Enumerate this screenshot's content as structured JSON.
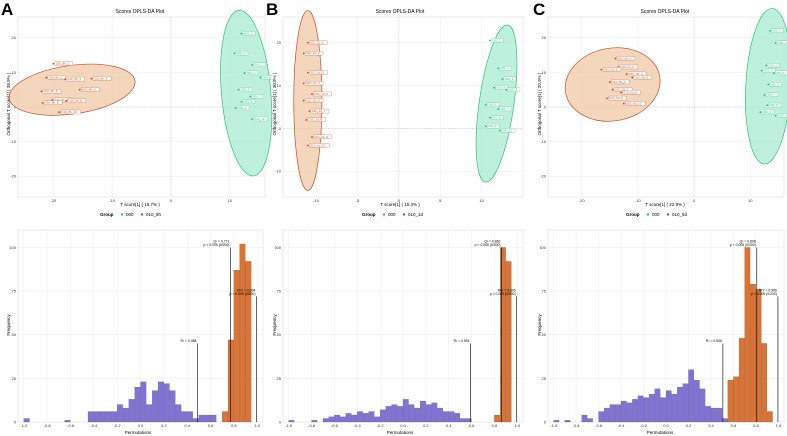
{
  "colors": {
    "grp_000": "#2ec27e",
    "grp_010": "#c0502a",
    "ellipse_000_fill": "#a8ecd0",
    "ellipse_010_fill": "#f0c8a6",
    "perm_q2": "#6a5acd",
    "perm_r2y": "#d35a10",
    "panel_bg": "#ffffff",
    "grid": "#ececec"
  },
  "panels": [
    {
      "letter": "A",
      "score": {
        "title": "Scores OPLS-DA Plot",
        "xlabel": "T score[1] ( 16.7% )",
        "ylabel": "Orthogonal T score[1] ( 38.9% )",
        "xticks": [
          "-20",
          "-10",
          "0",
          "10"
        ],
        "yticks": [
          "20",
          "10",
          "0",
          "-10",
          "-20"
        ],
        "legend_title": "Group",
        "legend_items": [
          "000",
          "010_8h"
        ]
      },
      "perm": {
        "legend_items": [
          "Perm Q²",
          "Perm R²Y"
        ],
        "xlabel": "Permutations",
        "ylabel": "Frequency",
        "xticks": [
          "-1.0",
          "-0.8",
          "-0.6",
          "-0.4",
          "-0.2",
          "0.0",
          "0.2",
          "0.4",
          "0.6",
          "0.8",
          "1.0"
        ],
        "yticks": [
          "100",
          "75",
          "50",
          "25",
          "0"
        ],
        "annot_r2": "R² = 0.488",
        "annot_q2": "Q² = 0.771 p < 0.005 (0/200)",
        "annot_r2y": "R²Y = 0.994 p < 0.005 (0/200)"
      }
    },
    {
      "letter": "B",
      "score": {
        "title": "Scores OPLS-DA Plot",
        "xlabel": "T score[1] ( 15.3% )",
        "ylabel": "Orthogonal T score[1] ( 30.8% )",
        "xticks": [
          "-10",
          "-5",
          "0",
          "5",
          "10"
        ],
        "yticks": [
          "20",
          "10",
          "0",
          "-10"
        ],
        "legend_title": "Group",
        "legend_items": [
          "000",
          "010_1d"
        ]
      },
      "perm": {
        "legend_items": [
          "Perm Q²",
          "Perm R²Y"
        ],
        "xlabel": "Permutations",
        "ylabel": "Frequency",
        "xticks": [
          "-1.0",
          "-0.8",
          "-0.6",
          "-0.4",
          "-0.2",
          "0.0",
          "0.2",
          "0.4",
          "0.6",
          "0.8",
          "1.0"
        ],
        "yticks": [
          "100",
          "75",
          "50",
          "25",
          "0"
        ],
        "annot_r2": "R² = 0.591",
        "annot_q2": "Q² = 0.862 p < 0.005 (0/200)",
        "annot_r2y": "R²Y = 0.995 p < 0.005 (0/200)"
      }
    },
    {
      "letter": "C",
      "score": {
        "title": "Scores OPLS-DA Plot",
        "xlabel": "T score[1] ( 22.9% )",
        "ylabel": "Orthogonal T score[1] ( 20.9% )",
        "xticks": [
          "-20",
          "-10",
          "0",
          "10"
        ],
        "yticks": [
          "20",
          "10",
          "0",
          "-10",
          "-20"
        ],
        "legend_title": "Group",
        "legend_items": [
          "000",
          "010_5d"
        ]
      },
      "perm": {
        "legend_items": [
          "Perm Q²",
          "Perm R²Y"
        ],
        "xlabel": "Permutations",
        "ylabel": "Frequency",
        "xticks": [
          "-1.0",
          "-0.8",
          "-0.6",
          "-0.4",
          "-0.2",
          "0.0",
          "0.2",
          "0.4",
          "0.6",
          "0.8",
          "1.0"
        ],
        "yticks": [
          "100",
          "75",
          "50",
          "25",
          "0"
        ],
        "annot_r2": "R² = 0.506",
        "annot_q2": "Q² = 0.808 p < 0.005 (0/200)",
        "annot_r2y": "R²Y = 0.996 p < 0.005 (0/200)"
      }
    }
  ],
  "chart_data": [
    {
      "type": "scatter",
      "panel": "A-score",
      "xlim": [
        -26,
        16
      ],
      "ylim": [
        -26,
        26
      ],
      "series": [
        {
          "name": "000",
          "points": [
            [
              12.0,
              21.2
            ],
            [
              10.8,
              15.5
            ],
            [
              13.8,
              12.2
            ],
            [
              12.5,
              9.8
            ],
            [
              15.2,
              8.5
            ],
            [
              11.5,
              5.0
            ],
            [
              13.5,
              3.0
            ],
            [
              12.0,
              1.5
            ],
            [
              11.0,
              -0.3
            ],
            [
              13.8,
              -3.5
            ]
          ],
          "labels": [
            "000_1",
            "000_2",
            "000_3",
            "000_4",
            "000_5",
            "000_6",
            "000_7",
            "000_8",
            "000_9",
            "000_10"
          ],
          "ellipse": {
            "cx": 12.8,
            "cy": 4.0,
            "rx": 4.2,
            "ry": 24.0,
            "angle": -5
          }
        },
        {
          "name": "010_8h",
          "points": [
            [
              -20.0,
              12.5
            ],
            [
              -21.2,
              8.5
            ],
            [
              -18.0,
              8.0
            ],
            [
              -13.5,
              8.2
            ],
            [
              -15.5,
              5.0
            ],
            [
              -22.0,
              4.5
            ],
            [
              -20.2,
              2.0
            ],
            [
              -17.8,
              1.8
            ],
            [
              -21.8,
              1.2
            ],
            [
              -19.0,
              -1.5
            ]
          ],
          "labels": [
            "010_8h_1",
            "010_8h_2",
            "010_8h_3",
            "010_8h_4",
            "010_8h_5",
            "010_8h_6",
            "010_8h_7",
            "010_8h_8",
            "010_8h_9",
            "010_8h_10"
          ],
          "ellipse": {
            "cx": -16.8,
            "cy": 5.0,
            "rx": 10.8,
            "ry": 7.0,
            "angle": -8
          }
        }
      ]
    },
    {
      "type": "scatter",
      "panel": "B-score",
      "xlim": [
        -14,
        15
      ],
      "ylim": [
        -16,
        26
      ],
      "series": [
        {
          "name": "000",
          "points": [
            [
              11.0,
              20.5
            ],
            [
              12.0,
              14.0
            ],
            [
              12.5,
              11.5
            ],
            [
              11.5,
              9.5
            ],
            [
              13.0,
              9.0
            ],
            [
              10.5,
              5.5
            ],
            [
              12.0,
              4.5
            ],
            [
              11.0,
              2.5
            ],
            [
              10.5,
              0.5
            ],
            [
              12.2,
              -0.5
            ]
          ],
          "labels": [
            "000_1",
            "000_2",
            "000_3",
            "000_4",
            "000_5",
            "000_6",
            "000_7",
            "000_8",
            "000_9",
            "000_10"
          ],
          "ellipse": {
            "cx": 11.8,
            "cy": 5.8,
            "rx": 2.1,
            "ry": 18.5,
            "angle": 8
          }
        },
        {
          "name": "010_1d",
          "points": [
            [
              -11.0,
              20.0
            ],
            [
              -11.5,
              17.5
            ],
            [
              -11.0,
              13.0
            ],
            [
              -11.5,
              10.5
            ],
            [
              -10.5,
              8.0
            ],
            [
              -11.5,
              6.5
            ],
            [
              -10.8,
              4.0
            ],
            [
              -11.2,
              2.0
            ],
            [
              -10.5,
              -2.0
            ],
            [
              -11.0,
              -4.0
            ]
          ],
          "labels": [
            "010_1d_1",
            "010_1d_2",
            "010_1d_3",
            "010_1d_4",
            "010_1d_5",
            "010_1d_6",
            "010_1d_7",
            "010_1d_8",
            "010_1d_9",
            "010_1d_10"
          ],
          "ellipse": {
            "cx": -11.0,
            "cy": 6.5,
            "rx": 1.7,
            "ry": 21.0,
            "angle": 0
          }
        }
      ]
    },
    {
      "type": "scatter",
      "panel": "C-score",
      "xlim": [
        -26,
        16
      ],
      "ylim": [
        -26,
        26
      ],
      "series": [
        {
          "name": "000",
          "points": [
            [
              13.5,
              22.0
            ],
            [
              14.5,
              18.5
            ],
            [
              12.8,
              12.0
            ],
            [
              12.0,
              10.5
            ],
            [
              14.2,
              9.8
            ],
            [
              13.2,
              6.5
            ],
            [
              12.5,
              3.5
            ],
            [
              13.0,
              0.5
            ],
            [
              11.8,
              -1.5
            ],
            [
              14.5,
              -2.5
            ]
          ],
          "labels": [
            "000_1",
            "000_2",
            "000_3",
            "000_4",
            "000_5",
            "000_6",
            "000_7",
            "000_8",
            "000_9",
            "000_10"
          ],
          "ellipse": {
            "cx": 13.2,
            "cy": 6.0,
            "rx": 4.0,
            "ry": 22.5,
            "angle": 3
          }
        },
        {
          "name": "010_5d",
          "points": [
            [
              -14.0,
              14.0
            ],
            [
              -13.5,
              11.5
            ],
            [
              -16.5,
              10.8
            ],
            [
              -12.0,
              9.5
            ],
            [
              -11.0,
              8.5
            ],
            [
              -15.0,
              7.2
            ],
            [
              -14.5,
              5.0
            ],
            [
              -13.0,
              4.2
            ],
            [
              -15.5,
              2.5
            ],
            [
              -12.5,
              1.0
            ]
          ],
          "labels": [
            "010_5d_1",
            "010_5d_2",
            "010_5d_3",
            "010_5d_4",
            "010_5d_5",
            "010_5d_6",
            "010_5d_7",
            "010_5d_8",
            "010_5d_9",
            "010_5d_10"
          ],
          "ellipse": {
            "cx": -14.5,
            "cy": 6.5,
            "rx": 8.5,
            "ry": 10.5,
            "angle": -10
          }
        }
      ]
    },
    {
      "type": "bar",
      "panel": "A-perm",
      "xlim": [
        -1.05,
        1.05
      ],
      "ylim": [
        0,
        110
      ],
      "bin_width": 0.05,
      "series": [
        {
          "name": "Perm Q²",
          "bin_starts": [
            -1.0,
            -0.65,
            -0.45,
            -0.4,
            -0.35,
            -0.3,
            -0.25,
            -0.2,
            -0.15,
            -0.1,
            -0.05,
            0.0,
            0.05,
            0.1,
            0.15,
            0.2,
            0.25,
            0.3,
            0.35,
            0.4,
            0.45,
            0.5,
            0.55,
            0.6
          ],
          "values": [
            2,
            1,
            6,
            6,
            6,
            6,
            6,
            10,
            8,
            13,
            20,
            23,
            10,
            18,
            23,
            22,
            18,
            10,
            6,
            6,
            2,
            4,
            4,
            4
          ]
        },
        {
          "name": "Perm R²Y",
          "bin_starts": [
            0.7,
            0.75,
            0.8,
            0.85,
            0.9
          ],
          "values": [
            6,
            47,
            87,
            102,
            92
          ]
        }
      ],
      "reference_lines": {
        "R2": 0.488,
        "Q2": 0.771,
        "R2Y": 0.994
      }
    },
    {
      "type": "bar",
      "panel": "B-perm",
      "xlim": [
        -1.05,
        1.05
      ],
      "ylim": [
        0,
        110
      ],
      "bin_width": 0.05,
      "series": [
        {
          "name": "Perm Q²",
          "bin_starts": [
            -1.0,
            -0.8,
            -0.7,
            -0.65,
            -0.6,
            -0.55,
            -0.5,
            -0.45,
            -0.4,
            -0.35,
            -0.3,
            -0.25,
            -0.2,
            -0.15,
            -0.1,
            -0.05,
            0.0,
            0.05,
            0.1,
            0.15,
            0.2,
            0.25,
            0.3,
            0.35,
            0.4,
            0.45,
            0.5,
            0.55
          ],
          "values": [
            1,
            1,
            2,
            3,
            4,
            3,
            5,
            4,
            6,
            5,
            6,
            3,
            7,
            9,
            10,
            9,
            13,
            10,
            8,
            12,
            10,
            11,
            8,
            6,
            6,
            5,
            2,
            2
          ]
        },
        {
          "name": "Perm R²Y",
          "bin_starts": [
            0.8,
            0.85,
            0.9
          ],
          "values": [
            4,
            100,
            92
          ]
        }
      ],
      "reference_lines": {
        "R2": 0.591,
        "Q2": 0.862,
        "R2Y": 0.995
      }
    },
    {
      "type": "bar",
      "panel": "C-perm",
      "xlim": [
        -1.05,
        1.05
      ],
      "ylim": [
        0,
        110
      ],
      "bin_width": 0.05,
      "series": [
        {
          "name": "Perm Q²",
          "bin_starts": [
            -1.0,
            -0.9,
            -0.75,
            -0.7,
            -0.6,
            -0.55,
            -0.5,
            -0.45,
            -0.4,
            -0.35,
            -0.3,
            -0.25,
            -0.2,
            -0.15,
            -0.1,
            -0.05,
            0.0,
            0.05,
            0.1,
            0.15,
            0.2,
            0.25,
            0.3,
            0.35,
            0.4,
            0.45,
            0.5
          ],
          "values": [
            1,
            1,
            4,
            2,
            6,
            8,
            10,
            10,
            12,
            11,
            13,
            15,
            14,
            16,
            19,
            14,
            18,
            16,
            20,
            22,
            30,
            24,
            19,
            9,
            8,
            8,
            2
          ]
        },
        {
          "name": "Perm R²Y",
          "bin_starts": [
            0.55,
            0.6,
            0.65,
            0.7,
            0.75,
            0.8,
            0.85,
            0.9
          ],
          "values": [
            24,
            26,
            48,
            100,
            79,
            76,
            45,
            6
          ]
        }
      ],
      "reference_lines": {
        "R2": 0.506,
        "Q2": 0.808,
        "R2Y": 0.996
      }
    }
  ]
}
